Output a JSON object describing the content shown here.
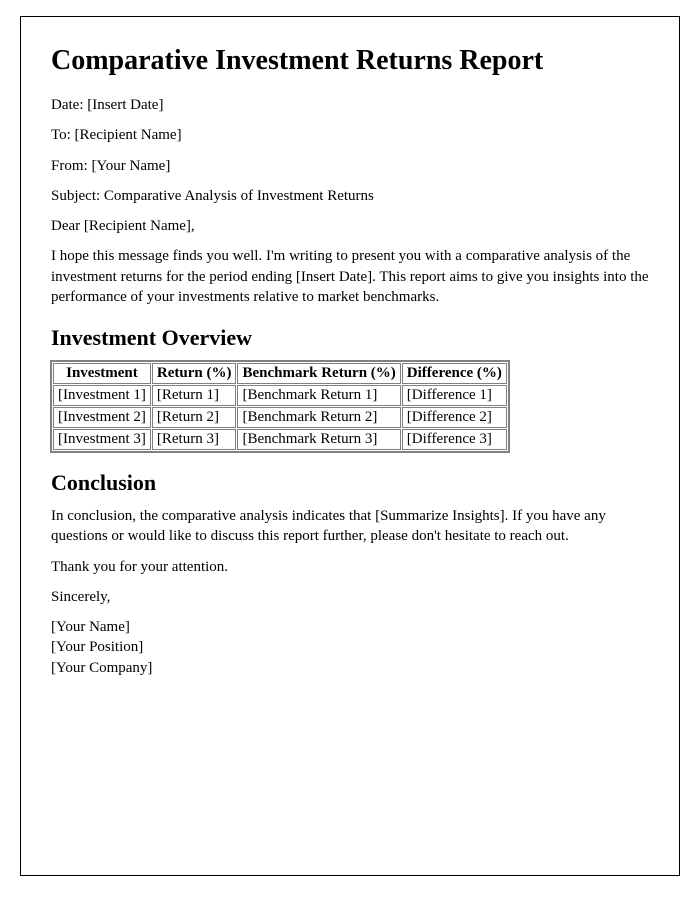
{
  "title": "Comparative Investment Returns Report",
  "meta": {
    "date_label": "Date: ",
    "date_value": "[Insert Date]",
    "to_label": "To: ",
    "to_value": "[Recipient Name]",
    "from_label": "From: ",
    "from_value": "[Your Name]",
    "subject_label": "Subject: ",
    "subject_value": "Comparative Analysis of Investment Returns"
  },
  "salutation": "Dear [Recipient Name],",
  "intro": "I hope this message finds you well. I'm writing to present you with a comparative analysis of the investment returns for the period ending [Insert Date]. This report aims to give you insights into the performance of your investments relative to market benchmarks.",
  "overview_heading": "Investment Overview",
  "table": {
    "headers": [
      "Investment",
      "Return (%)",
      "Benchmark Return (%)",
      "Difference (%)"
    ],
    "rows": [
      [
        "[Investment 1]",
        "[Return 1]",
        "[Benchmark Return 1]",
        "[Difference 1]"
      ],
      [
        "[Investment 2]",
        "[Return 2]",
        "[Benchmark Return 2]",
        "[Difference 2]"
      ],
      [
        "[Investment 3]",
        "[Return 3]",
        "[Benchmark Return 3]",
        "[Difference 3]"
      ]
    ]
  },
  "conclusion_heading": "Conclusion",
  "conclusion_text": "In conclusion, the comparative analysis indicates that [Summarize Insights]. If you have any questions or would like to discuss this report further, please don't hesitate to reach out.",
  "thanks": "Thank you for your attention.",
  "closing": "Sincerely,",
  "signature": {
    "name": "[Your Name]",
    "position": "[Your Position]",
    "company": "[Your Company]"
  }
}
